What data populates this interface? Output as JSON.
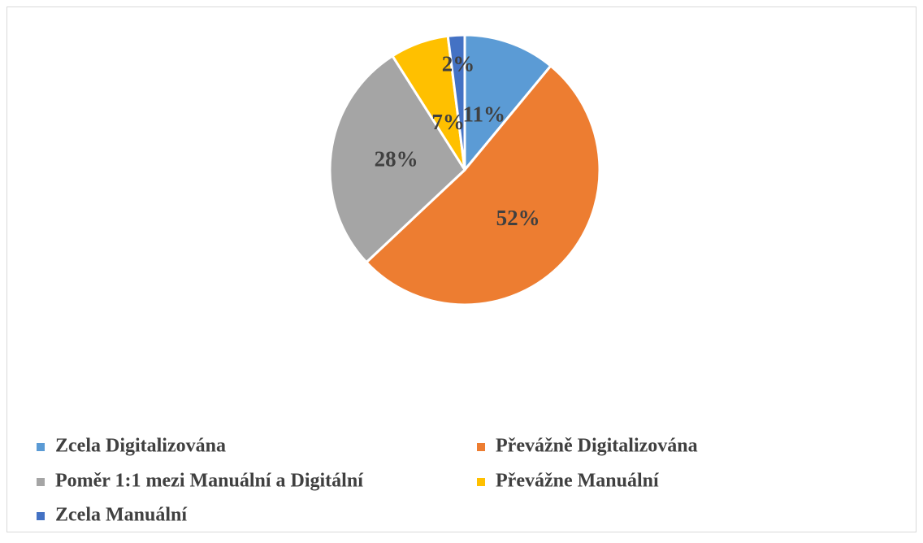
{
  "chart_data": {
    "type": "pie",
    "categories": [
      "Zcela Digitalizována",
      "Převážně Digitalizována",
      "Poměr 1:1 mezi Manuální a Digitální",
      "Převážne Manuální",
      "Zcela Manuální"
    ],
    "values": [
      11,
      52,
      28,
      7,
      2
    ],
    "value_labels": [
      "11%",
      "52%",
      "28%",
      "7%",
      "2%"
    ],
    "colors": [
      "#5b9bd5",
      "#ed7d31",
      "#a5a5a5",
      "#ffc000",
      "#4472c4"
    ],
    "legend": "bottom"
  }
}
